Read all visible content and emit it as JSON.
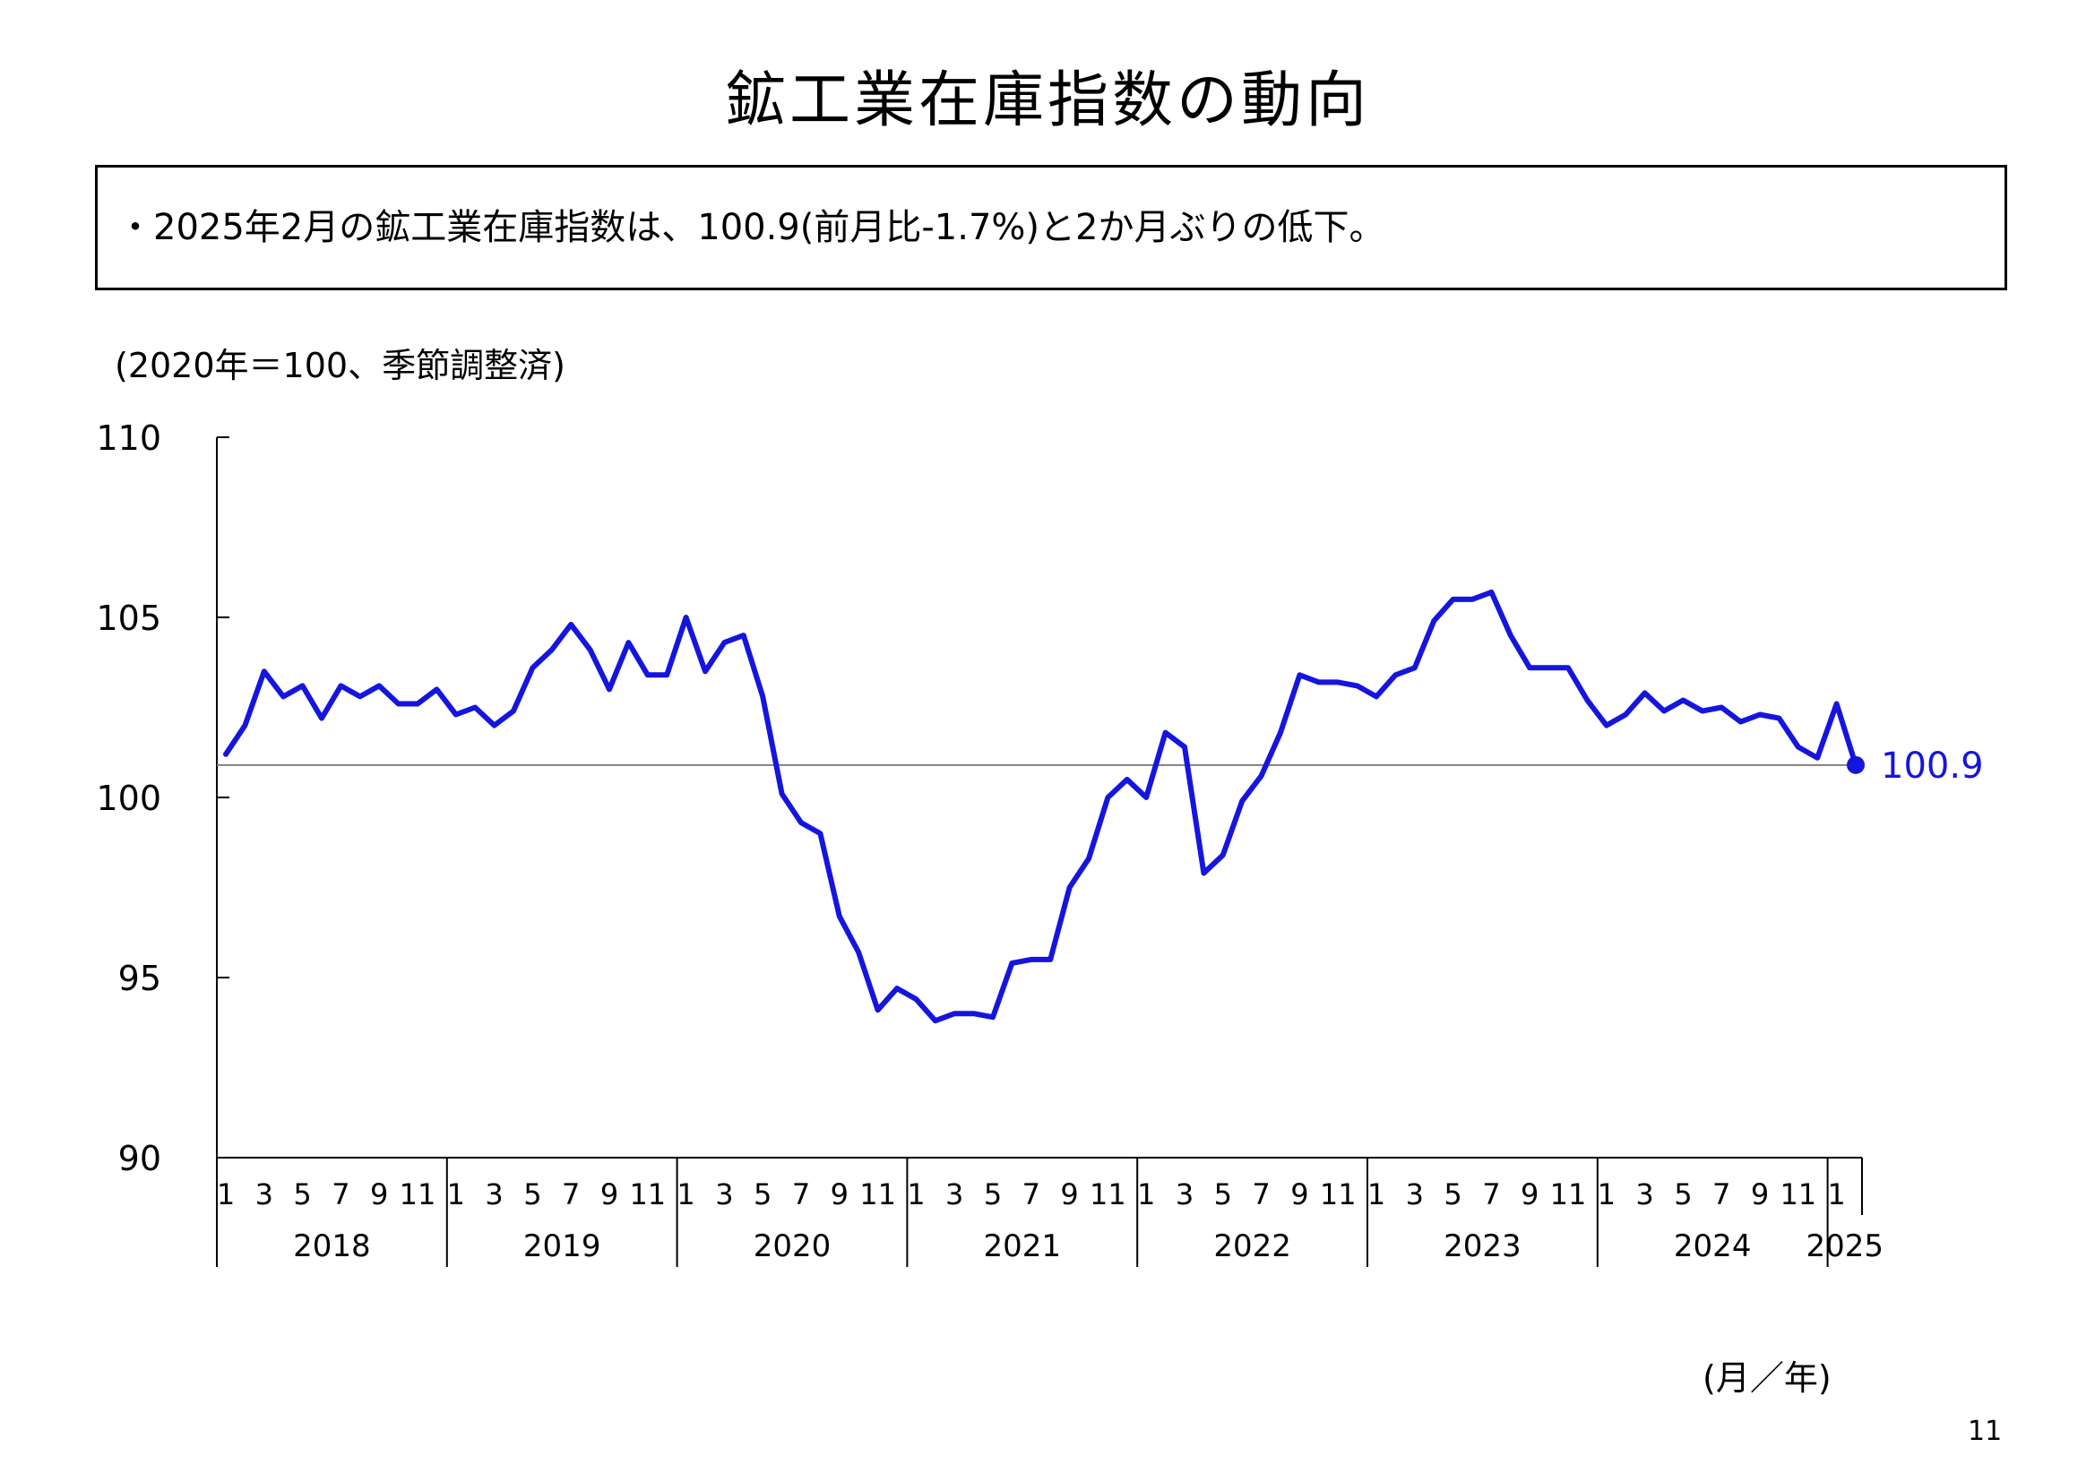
{
  "title": "鉱工業在庫指数の動向",
  "summary": "・2025年2月の鉱工業在庫指数は、100.9(前月比-1.7%)と2か月ぶりの低下。",
  "unit_note": "(2020年＝100、季節調整済)",
  "axis_note": "(月／年)",
  "page_number": "11",
  "colors": {
    "series": "#1515e0",
    "reference_line": "#808080",
    "axis": "#000000"
  },
  "chart_data": {
    "type": "line",
    "ylim": [
      90,
      110
    ],
    "yticks": [
      90,
      95,
      100,
      105,
      110
    ],
    "month_ticks": [
      "1",
      "3",
      "5",
      "7",
      "9",
      "11"
    ],
    "years": [
      "2018",
      "2019",
      "2020",
      "2021",
      "2022",
      "2023",
      "2024",
      "2025"
    ],
    "grid": false,
    "legend": "none",
    "reference_line": 100.9,
    "last_label": "100.9",
    "series": [
      {
        "start": "2018-01",
        "values": [
          101.2,
          102.0,
          103.5,
          102.8,
          103.1,
          102.2,
          103.1,
          102.8,
          103.1,
          102.6,
          102.6,
          103.0,
          102.3,
          102.5,
          102.0,
          102.4,
          103.6,
          104.1,
          104.8,
          104.1,
          103.0,
          104.3,
          103.4,
          103.4,
          105.0,
          103.5,
          104.3,
          104.5,
          102.8,
          100.1,
          99.3,
          99.0,
          96.7,
          95.7,
          94.1,
          94.7,
          94.4,
          93.8,
          94.0,
          94.0,
          93.9,
          95.4,
          95.5,
          95.5,
          97.5,
          98.3,
          100.0,
          100.5,
          100.0,
          101.8,
          101.4,
          97.9,
          98.4,
          99.9,
          100.6,
          101.8,
          103.4,
          103.2,
          103.2,
          103.1,
          102.8,
          103.4,
          103.6,
          104.9,
          105.5,
          105.5,
          105.7,
          104.5,
          103.6,
          103.6,
          103.6,
          102.7,
          102.0,
          102.3,
          102.9,
          102.4,
          102.7,
          102.4,
          102.5,
          102.1,
          102.3,
          102.2,
          101.4,
          101.1,
          102.6,
          100.9
        ]
      }
    ]
  }
}
